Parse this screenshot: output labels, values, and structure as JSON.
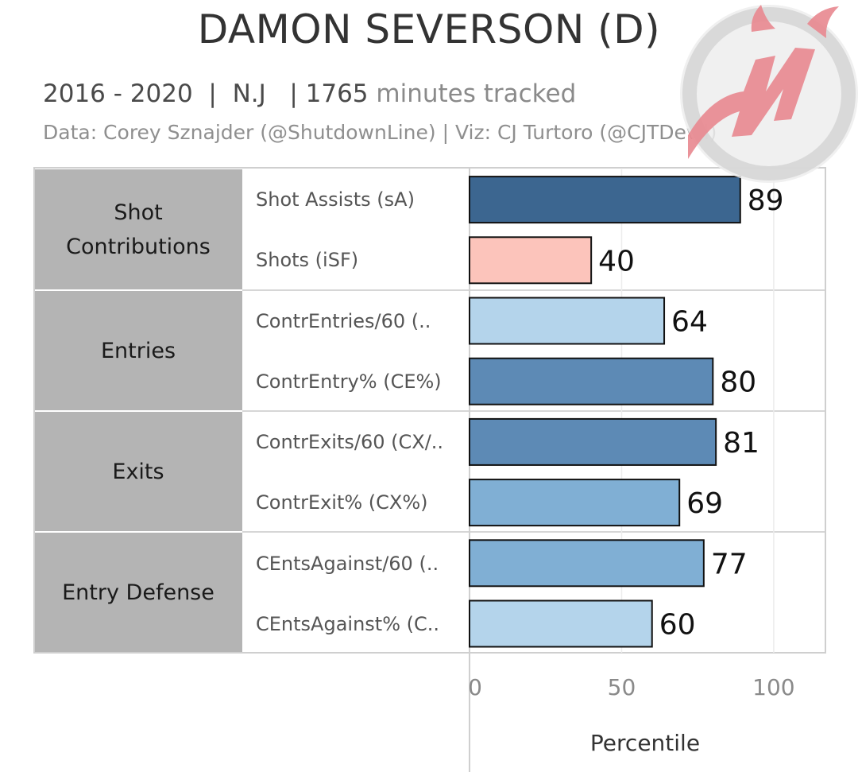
{
  "header": {
    "title": "DAMON SEVERSON (D)",
    "years": "2016 - 2020",
    "team": "N.J",
    "minutes": "1765",
    "minutes_suffix": "minutes tracked",
    "credit": "Data: Corey Sznajder (@ShutdownLine) | Viz: CJ Turtoro (@CJTDevil)"
  },
  "groups": [
    {
      "label": "Shot\nContributions"
    },
    {
      "label": "Entries"
    },
    {
      "label": "Exits"
    },
    {
      "label": "Entry Defense"
    }
  ],
  "metrics": [
    "Shot Assists (sA)",
    "Shots (iSF)",
    "ContrEntries/60 (..",
    "ContrEntry% (CE%)",
    "ContrExits/60 (CX/..",
    "ContrExit% (CX%)",
    "CEntsAgainst/60 (..",
    "CEntsAgainst% (C.."
  ],
  "chart_data": {
    "type": "bar",
    "orientation": "horizontal",
    "categories": [
      "Shot Assists (sA)",
      "Shots (iSF)",
      "ContrEntries/60 (..",
      "ContrEntry% (CE%)",
      "ContrExits/60 (CX/..",
      "ContrExit% (CX%)",
      "CEntsAgainst/60 (..",
      "CEntsAgainst% (C.."
    ],
    "values": [
      89,
      40,
      64,
      80,
      81,
      69,
      77,
      60
    ],
    "colors": [
      "#3c6690",
      "#fcc4bb",
      "#b4d4eb",
      "#5d8ab5",
      "#5d8ab5",
      "#80afd4",
      "#80afd4",
      "#b4d4eb"
    ],
    "xlabel": "Percentile",
    "xlim": [
      0,
      117
    ],
    "xticks": [
      "0",
      "50",
      "100"
    ],
    "grid": true
  },
  "logo": {
    "icon": "nj-devils-logo",
    "colors": {
      "red": "#e88a91",
      "silver": "#d9d9d9"
    }
  }
}
